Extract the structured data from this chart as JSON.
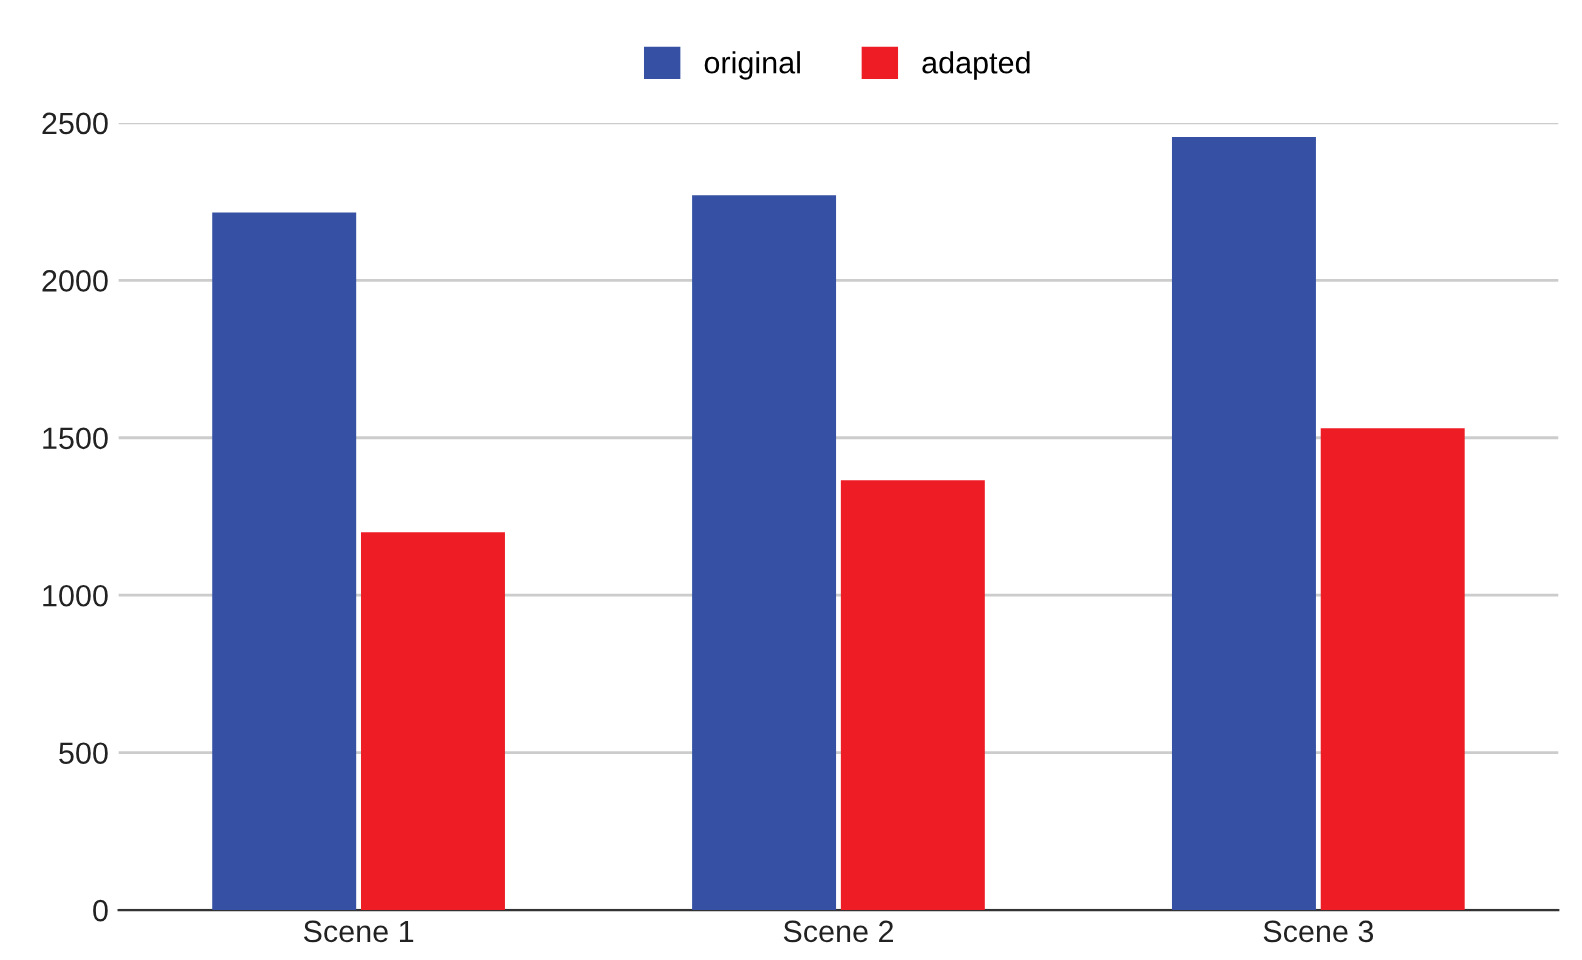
{
  "chart_data": {
    "type": "bar",
    "categories": [
      "Scene 1",
      "Scene 2",
      "Scene 3"
    ],
    "series": [
      {
        "name": "original",
        "color": "#3651a3",
        "values": [
          2215,
          2270,
          2455
        ]
      },
      {
        "name": "adapted",
        "color": "#ee1c24",
        "values": [
          1200,
          1365,
          1530
        ]
      }
    ],
    "ylim": [
      0,
      2500
    ],
    "yticks": [
      0,
      500,
      1000,
      1500,
      2000,
      2500
    ],
    "grid": "y",
    "legend": "top"
  }
}
